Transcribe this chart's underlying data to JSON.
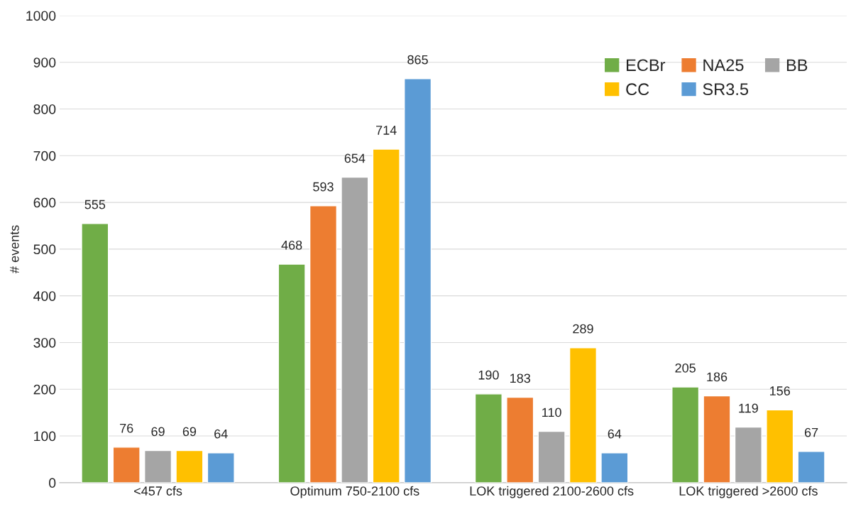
{
  "chart_data": {
    "type": "bar",
    "ylabel": "# events",
    "categories": [
      "<457 cfs",
      "Optimum 750-2100 cfs",
      "LOK triggered 2100-2600 cfs",
      "LOK triggered >2600 cfs"
    ],
    "series": [
      {
        "name": "ECBr",
        "color": "#70ad47",
        "values": [
          555,
          468,
          190,
          205
        ]
      },
      {
        "name": "NA25",
        "color": "#ed7d31",
        "values": [
          76,
          593,
          183,
          186
        ]
      },
      {
        "name": "BB",
        "color": "#a5a5a5",
        "values": [
          69,
          654,
          110,
          119
        ]
      },
      {
        "name": "CC",
        "color": "#ffc000",
        "values": [
          69,
          714,
          289,
          156
        ]
      },
      {
        "name": "SR3.5",
        "color": "#5b9bd5",
        "values": [
          64,
          865,
          64,
          67
        ]
      }
    ],
    "ylim": [
      0,
      1000
    ],
    "yticks": [
      0,
      100,
      200,
      300,
      400,
      500,
      600,
      700,
      800,
      900,
      1000
    ],
    "grid": "y",
    "legend": "top right",
    "data_labels": true
  }
}
